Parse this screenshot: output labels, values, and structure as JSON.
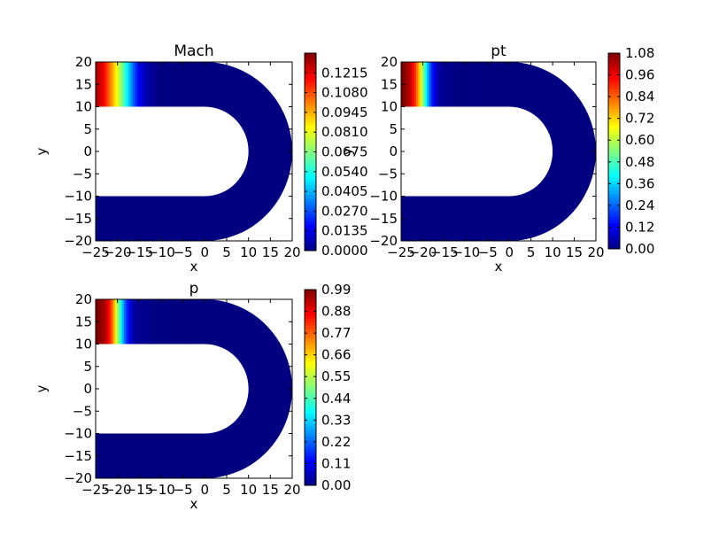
{
  "chart_data": [
    {
      "type": "heatmap",
      "title": "Mach",
      "xlabel": "x",
      "ylabel": "y",
      "xlim": [
        -25,
        20
      ],
      "ylim": [
        -20,
        20
      ],
      "xticks": [
        -25,
        -20,
        -15,
        -10,
        -5,
        0,
        5,
        10,
        15,
        20
      ],
      "yticks": [
        -20,
        -15,
        -10,
        -5,
        0,
        5,
        10,
        15,
        20
      ],
      "xtick_labels": [
        "−25",
        "−20",
        "−15",
        "−10",
        "−5",
        "0",
        "5",
        "10",
        "15",
        "20"
      ],
      "ytick_labels": [
        "−20",
        "−15",
        "−10",
        "−5",
        "0",
        "5",
        "10",
        "15",
        "20"
      ],
      "colorbar": {
        "min": 0.0,
        "max": 0.135,
        "ticks": [
          0.0,
          0.0135,
          0.027,
          0.0405,
          0.054,
          0.0675,
          0.081,
          0.0945,
          0.108,
          0.1215
        ],
        "tick_labels": [
          "0.0000",
          "0.0135",
          "0.0270",
          "0.0405",
          "0.0540",
          "0.0675",
          "0.0810",
          "0.0945",
          "0.1080",
          "0.1215"
        ]
      },
      "field_profile": {
        "description_axis": "x",
        "x": [
          -24.5,
          -23.5,
          -22.5,
          -21.5,
          -20.5,
          -19.5,
          -18.5,
          -17.5,
          -16.5,
          -15.5,
          -14.5,
          -13.5,
          -12.5,
          -10.0,
          -5.0
        ],
        "values": [
          0.128,
          0.122,
          0.112,
          0.1,
          0.088,
          0.075,
          0.06,
          0.045,
          0.032,
          0.02,
          0.012,
          0.006,
          0.003,
          0.0005,
          0.0
        ]
      }
    },
    {
      "type": "heatmap",
      "title": "pt",
      "xlabel": "x",
      "ylabel": "y",
      "xlim": [
        -25,
        20
      ],
      "ylim": [
        -20,
        20
      ],
      "xticks": [
        -25,
        -20,
        -15,
        -10,
        -5,
        0,
        5,
        10,
        15,
        20
      ],
      "yticks": [
        -20,
        -15,
        -10,
        -5,
        0,
        5,
        10,
        15,
        20
      ],
      "xtick_labels": [
        "−25",
        "−20",
        "−15",
        "−10",
        "−5",
        "0",
        "5",
        "10",
        "15",
        "20"
      ],
      "ytick_labels": [
        "−20",
        "−15",
        "−10",
        "−5",
        "0",
        "5",
        "10",
        "15",
        "20"
      ],
      "colorbar": {
        "min": 0.0,
        "max": 1.08,
        "ticks": [
          0.0,
          0.12,
          0.24,
          0.36,
          0.48,
          0.6,
          0.72,
          0.84,
          0.96,
          1.08
        ],
        "tick_labels": [
          "0.00",
          "0.12",
          "0.24",
          "0.36",
          "0.48",
          "0.60",
          "0.72",
          "0.84",
          "0.96",
          "1.08"
        ]
      },
      "field_profile": {
        "description_axis": "x",
        "x": [
          -24.5,
          -23.5,
          -22.5,
          -21.5,
          -20.5,
          -19.5,
          -18.5,
          -17.5,
          -16.5,
          -15.5,
          -12.0,
          -5.0
        ],
        "values": [
          1.08,
          1.05,
          0.98,
          0.86,
          0.68,
          0.46,
          0.26,
          0.12,
          0.05,
          0.02,
          0.005,
          0.0
        ]
      }
    },
    {
      "type": "heatmap",
      "title": "p",
      "xlabel": "x",
      "ylabel": "y",
      "xlim": [
        -25,
        20
      ],
      "ylim": [
        -20,
        20
      ],
      "xticks": [
        -25,
        -20,
        -15,
        -10,
        -5,
        0,
        5,
        10,
        15,
        20
      ],
      "yticks": [
        -20,
        -15,
        -10,
        -5,
        0,
        5,
        10,
        15,
        20
      ],
      "xtick_labels": [
        "−25",
        "−20",
        "−15",
        "−10",
        "−5",
        "0",
        "5",
        "10",
        "15",
        "20"
      ],
      "ytick_labels": [
        "−20",
        "−15",
        "−10",
        "−5",
        "0",
        "5",
        "10",
        "15",
        "20"
      ],
      "colorbar": {
        "min": 0.0,
        "max": 0.99,
        "ticks": [
          0.0,
          0.11,
          0.22,
          0.33,
          0.44,
          0.55,
          0.66,
          0.77,
          0.88,
          0.99
        ],
        "tick_labels": [
          "0.00",
          "0.11",
          "0.22",
          "0.33",
          "0.44",
          "0.55",
          "0.66",
          "0.77",
          "0.88",
          "0.99"
        ]
      },
      "field_profile": {
        "description_axis": "x",
        "x": [
          -24.5,
          -23.5,
          -22.5,
          -21.5,
          -20.5,
          -19.5,
          -18.5,
          -17.5,
          -16.5,
          -15.5,
          -12.0,
          -5.0
        ],
        "values": [
          0.99,
          0.97,
          0.92,
          0.82,
          0.64,
          0.44,
          0.25,
          0.12,
          0.05,
          0.02,
          0.005,
          0.0
        ]
      }
    }
  ]
}
